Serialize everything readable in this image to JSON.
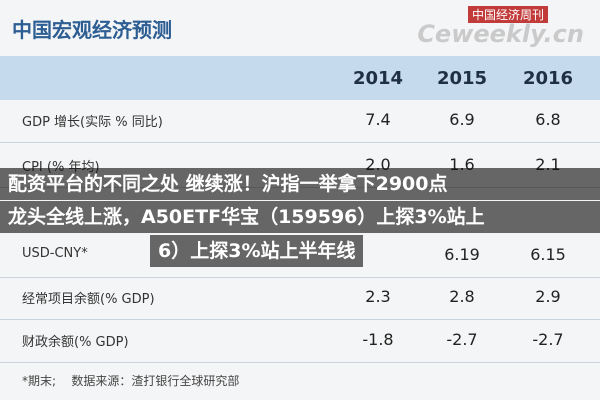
{
  "header": {
    "title": "中国宏观经济预测",
    "watermark": "中国经济周刊",
    "watermark_site": "Ceweekly.cn"
  },
  "table": {
    "columns": [
      "2014",
      "2015",
      "2016"
    ],
    "rows": [
      {
        "label": "GDP 增长(实际 % 同比)",
        "values": [
          "7.4",
          "6.9",
          "6.8"
        ]
      },
      {
        "label": "CPI (% 年均)",
        "values": [
          "2.0",
          "1.6",
          "2.1"
        ]
      },
      {
        "label": "USD-CNY*",
        "values": [
          null,
          "6.19",
          "6.15"
        ]
      },
      {
        "label": "经常项目余额(% GDP)",
        "values": [
          "2.3",
          "2.8",
          "2.9"
        ]
      },
      {
        "label": "财政余额(% GDP)",
        "values": [
          "-1.8",
          "-2.7",
          "-2.7"
        ]
      }
    ]
  },
  "footnote": {
    "note": "*期末;",
    "source": "数据来源：渣打银行全球研究部"
  },
  "overlay": [
    "配资平台的不同之处 继续涨！沪指一举拿下2900点",
    "龙头全线上涨，A50ETF华宝（159596）上探3%站上",
    "6）上探3%站上半年线"
  ]
}
